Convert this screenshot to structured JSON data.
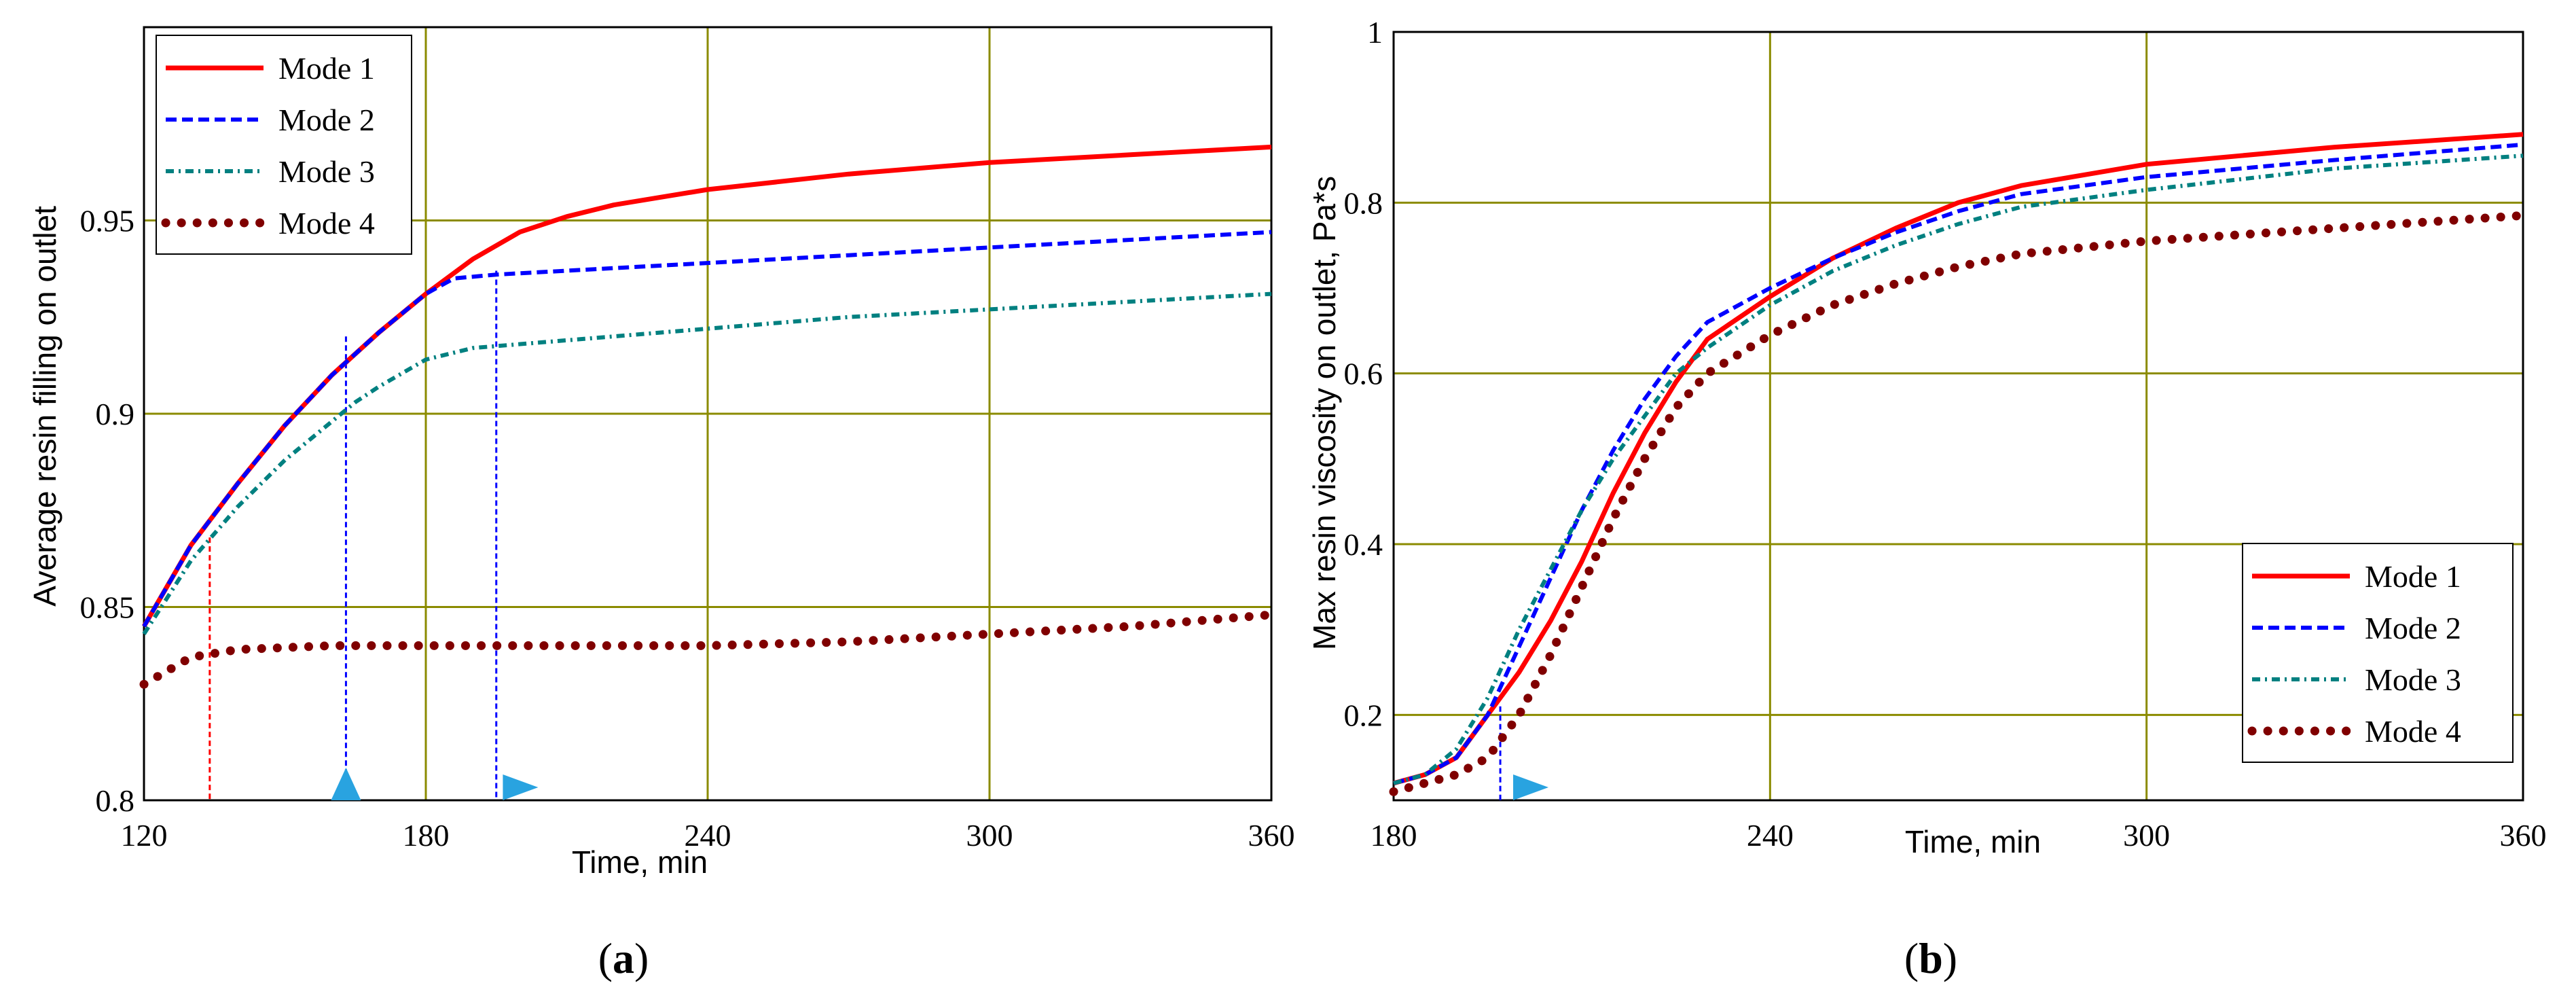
{
  "chart_data": [
    {
      "type": "line",
      "panel_label": {
        "open": "(",
        "letter": "a",
        "close": ")"
      },
      "xlabel": "Time, min",
      "ylabel": "Average resin filling on outlet",
      "xlim": [
        120,
        360
      ],
      "ylim": [
        0.8,
        1.0
      ],
      "xticks": [
        120,
        180,
        240,
        300,
        360
      ],
      "xtick_labels": [
        "120",
        "180",
        "240",
        "300",
        "360"
      ],
      "yticks": [
        0.8,
        0.85,
        0.9,
        0.95
      ],
      "ytick_labels": [
        "0.8",
        "0.85",
        "0.9",
        "0.95"
      ],
      "grid": true,
      "legend_position": "top-left",
      "series": [
        {
          "name": "Mode 1",
          "color": "#ff0000",
          "style": "solid",
          "x": [
            120,
            130,
            140,
            150,
            160,
            170,
            180,
            190,
            200,
            210,
            220,
            240,
            270,
            300,
            330,
            360
          ],
          "y": [
            0.845,
            0.866,
            0.882,
            0.897,
            0.91,
            0.921,
            0.931,
            0.94,
            0.947,
            0.951,
            0.954,
            0.958,
            0.962,
            0.965,
            0.967,
            0.969
          ]
        },
        {
          "name": "Mode 2",
          "color": "#0000ff",
          "style": "dashed",
          "x": [
            120,
            130,
            140,
            150,
            160,
            170,
            180,
            186,
            195,
            210,
            240,
            270,
            300,
            330,
            360
          ],
          "y": [
            0.845,
            0.866,
            0.882,
            0.897,
            0.91,
            0.921,
            0.931,
            0.935,
            0.936,
            0.937,
            0.939,
            0.941,
            0.943,
            0.945,
            0.947
          ]
        },
        {
          "name": "Mode 3",
          "color": "#008080",
          "style": "dashdot",
          "x": [
            120,
            130,
            140,
            150,
            160,
            165,
            170,
            180,
            190,
            210,
            240,
            270,
            300,
            330,
            360
          ],
          "y": [
            0.843,
            0.862,
            0.876,
            0.888,
            0.898,
            0.903,
            0.907,
            0.914,
            0.917,
            0.919,
            0.922,
            0.925,
            0.927,
            0.929,
            0.931
          ]
        },
        {
          "name": "Mode 4",
          "color": "#800000",
          "style": "dotted",
          "x": [
            120,
            130,
            140,
            160,
            180,
            210,
            240,
            270,
            300,
            330,
            360
          ],
          "y": [
            0.83,
            0.837,
            0.839,
            0.84,
            0.84,
            0.84,
            0.84,
            0.841,
            0.843,
            0.845,
            0.848
          ]
        }
      ],
      "markers": [
        {
          "x": 134,
          "color": "#ff0000",
          "top": 0.868
        },
        {
          "x": 163,
          "color": "#0000ff",
          "top": 0.92
        },
        {
          "x": 195,
          "color": "#0000ff",
          "top": 0.937
        }
      ],
      "arrows": [
        {
          "x": 163,
          "direction": "up",
          "color": "#29a3e0"
        },
        {
          "x": 199,
          "direction": "right",
          "color": "#29a3e0"
        }
      ]
    },
    {
      "type": "line",
      "panel_label": {
        "open": "(",
        "letter": "b",
        "close": ")"
      },
      "xlabel": "Time, min",
      "ylabel": "Max resin viscosity on outlet, Pa*s",
      "xlim": [
        180,
        360
      ],
      "ylim": [
        0.1,
        1.0
      ],
      "xticks": [
        180,
        240,
        300,
        360
      ],
      "xtick_labels": [
        "180",
        "240",
        "300",
        "360"
      ],
      "yticks": [
        0.2,
        0.4,
        0.6,
        0.8,
        1.0
      ],
      "ytick_labels": [
        "0.2",
        "0.4",
        "0.6",
        "0.8",
        "1"
      ],
      "grid": true,
      "legend_position": "bottom-right",
      "series": [
        {
          "name": "Mode 1",
          "color": "#ff0000",
          "style": "solid",
          "x": [
            180,
            185,
            190,
            195,
            200,
            205,
            210,
            215,
            220,
            225,
            230,
            240,
            250,
            260,
            270,
            280,
            300,
            330,
            360
          ],
          "y": [
            0.12,
            0.13,
            0.15,
            0.2,
            0.25,
            0.31,
            0.38,
            0.46,
            0.53,
            0.59,
            0.64,
            0.69,
            0.735,
            0.77,
            0.8,
            0.82,
            0.845,
            0.865,
            0.88
          ]
        },
        {
          "name": "Mode 2",
          "color": "#0000ff",
          "style": "dashed",
          "x": [
            180,
            185,
            190,
            195,
            200,
            205,
            210,
            215,
            220,
            225,
            230,
            240,
            250,
            260,
            270,
            280,
            300,
            330,
            360
          ],
          "y": [
            0.12,
            0.13,
            0.15,
            0.2,
            0.28,
            0.36,
            0.44,
            0.51,
            0.57,
            0.62,
            0.66,
            0.7,
            0.735,
            0.765,
            0.79,
            0.81,
            0.83,
            0.85,
            0.868
          ]
        },
        {
          "name": "Mode 3",
          "color": "#008080",
          "style": "dashdot",
          "x": [
            180,
            185,
            190,
            195,
            200,
            205,
            210,
            215,
            220,
            225,
            230,
            240,
            250,
            260,
            270,
            280,
            300,
            330,
            360
          ],
          "y": [
            0.12,
            0.13,
            0.16,
            0.22,
            0.3,
            0.37,
            0.44,
            0.5,
            0.55,
            0.6,
            0.63,
            0.68,
            0.72,
            0.75,
            0.775,
            0.795,
            0.815,
            0.84,
            0.855
          ]
        },
        {
          "name": "Mode 4",
          "color": "#800000",
          "style": "dotted",
          "x": [
            180,
            185,
            190,
            195,
            200,
            205,
            210,
            215,
            220,
            225,
            230,
            240,
            250,
            260,
            270,
            280,
            300,
            330,
            360
          ],
          "y": [
            0.11,
            0.12,
            0.13,
            0.15,
            0.2,
            0.27,
            0.35,
            0.43,
            0.5,
            0.56,
            0.6,
            0.645,
            0.68,
            0.705,
            0.725,
            0.74,
            0.755,
            0.77,
            0.785
          ]
        }
      ],
      "markers": [
        {
          "x": 197,
          "color": "#0000ff",
          "top": 0.21
        }
      ],
      "arrows": [
        {
          "x": 201,
          "direction": "right",
          "color": "#29a3e0"
        }
      ]
    }
  ]
}
